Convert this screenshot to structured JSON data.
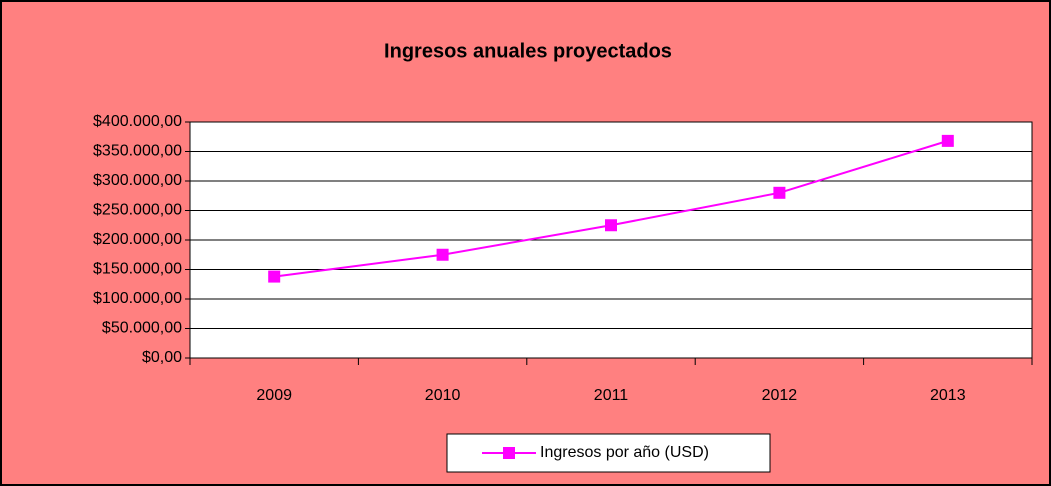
{
  "chart_data": {
    "type": "line",
    "title": "Ingresos anuales proyectados",
    "categories": [
      "2009",
      "2010",
      "2011",
      "2012",
      "2013"
    ],
    "series": [
      {
        "name": "Ingresos por año (USD)",
        "color": "#ff00ff",
        "values": [
          138000,
          175000,
          225000,
          280000,
          368000
        ]
      }
    ],
    "ylim": [
      0,
      400000
    ],
    "yticks": [
      {
        "value": 0,
        "label": "$0,00"
      },
      {
        "value": 50000,
        "label": "$50.000,00"
      },
      {
        "value": 100000,
        "label": "$100.000,00"
      },
      {
        "value": 150000,
        "label": "$150.000,00"
      },
      {
        "value": 200000,
        "label": "$200.000,00"
      },
      {
        "value": 250000,
        "label": "$250.000,00"
      },
      {
        "value": 300000,
        "label": "$300.000,00"
      },
      {
        "value": 350000,
        "label": "$350.000,00"
      },
      {
        "value": 400000,
        "label": "$400.000,00"
      }
    ],
    "grid": true,
    "legend": "bottom",
    "background": "#ff8080"
  }
}
